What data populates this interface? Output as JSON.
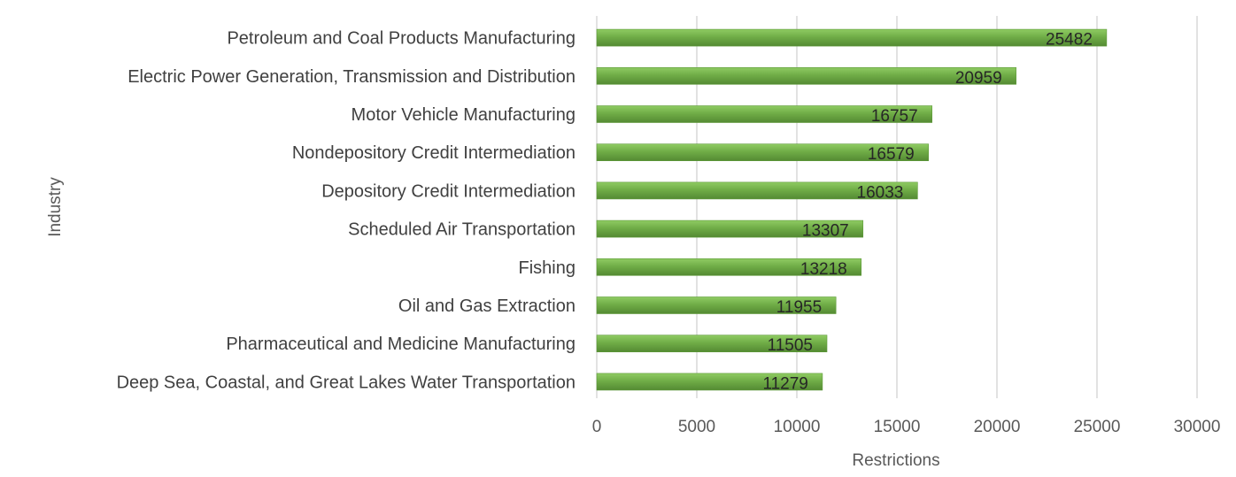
{
  "chart_data": {
    "type": "bar",
    "orientation": "horizontal",
    "categories": [
      "Petroleum and Coal Products Manufacturing",
      "Electric Power Generation, Transmission and Distribution",
      "Motor Vehicle Manufacturing",
      "Nondepository Credit Intermediation",
      "Depository Credit Intermediation",
      "Scheduled Air Transportation",
      "Fishing",
      "Oil and Gas Extraction",
      "Pharmaceutical and Medicine Manufacturing",
      "Deep Sea, Coastal, and Great Lakes Water Transportation"
    ],
    "values": [
      25482,
      20959,
      16757,
      16579,
      16033,
      13307,
      13218,
      11955,
      11505,
      11279
    ],
    "data_labels": [
      "25482",
      "20959",
      "16757",
      "16579",
      "16033",
      "13307",
      "13218",
      "11955",
      "11505",
      "11279"
    ],
    "xlabel": "Restrictions",
    "ylabel": "Industry",
    "xlim": [
      0,
      30000
    ],
    "x_ticks": [
      0,
      5000,
      10000,
      15000,
      20000,
      25000,
      30000
    ],
    "x_tick_labels": [
      "0",
      "5000",
      "10000",
      "15000",
      "20000",
      "25000",
      "30000"
    ],
    "grid": "vertical",
    "legend": "none",
    "bar_color": "#70ad47"
  }
}
